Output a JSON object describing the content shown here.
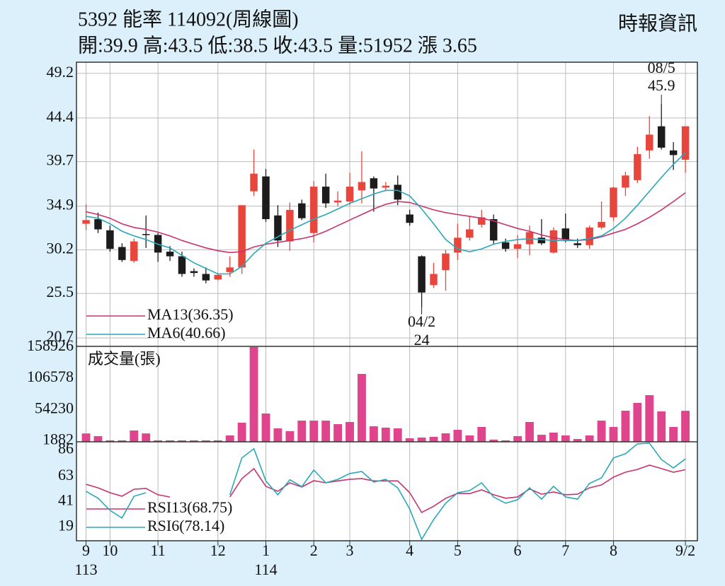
{
  "header": {
    "title": "5392  能率 114092(周線圖)",
    "source": "時報資訊",
    "info": "開:39.9 高:43.5 低:38.5 收:43.5 量:51952 漲 3.65"
  },
  "chart_data": [
    {
      "type": "candlestick",
      "xlim": [
        -0.8,
        51
      ],
      "xticks": [
        {
          "value": 0,
          "label": "9",
          "sublabel": "113"
        },
        {
          "value": 2,
          "label": "10"
        },
        {
          "value": 6,
          "label": "11"
        },
        {
          "value": 11,
          "label": "12"
        },
        {
          "value": 15,
          "label": "1",
          "sublabel": "114"
        },
        {
          "value": 19,
          "label": "2"
        },
        {
          "value": 22,
          "label": "3"
        },
        {
          "value": 27,
          "label": "4"
        },
        {
          "value": 31,
          "label": "5"
        },
        {
          "value": 36,
          "label": "6"
        },
        {
          "value": 40,
          "label": "7"
        },
        {
          "value": 44,
          "label": "8"
        },
        {
          "value": 50,
          "label": "9/2"
        }
      ],
      "open": [
        33.0,
        33.5,
        32.3,
        30.5,
        29.0,
        31.9,
        31.8,
        30.0,
        29.5,
        27.9,
        27.6,
        27.0,
        27.8,
        28.3,
        36.5,
        38.1,
        33.9,
        31.1,
        35.2,
        32.0,
        37.0,
        35.3,
        35.4,
        36.6,
        37.9,
        36.9,
        37.2,
        34.0,
        29.5,
        26.4,
        28.0,
        29.9,
        31.5,
        32.9,
        33.5,
        31.0,
        30.3,
        30.8,
        31.5,
        29.9,
        32.5,
        30.9,
        30.7,
        32.6,
        33.7,
        36.9,
        37.7,
        40.9,
        43.5,
        40.9,
        39.9
      ],
      "high": [
        35.1,
        34.2,
        32.8,
        30.9,
        31.4,
        33.9,
        32.0,
        30.6,
        30.0,
        28.2,
        28.3,
        27.7,
        29.5,
        35.0,
        41.0,
        38.9,
        35.0,
        35.3,
        35.6,
        37.6,
        38.4,
        36.5,
        38.5,
        40.8,
        38.1,
        37.5,
        38.2,
        34.5,
        29.6,
        28.8,
        30.2,
        33.0,
        33.8,
        34.5,
        34.0,
        31.4,
        31.8,
        32.8,
        33.5,
        32.6,
        34.1,
        31.4,
        32.8,
        35.4,
        37.0,
        38.6,
        41.3,
        44.6,
        45.9,
        41.8,
        43.5
      ],
      "low": [
        32.3,
        32.0,
        30.0,
        28.9,
        28.8,
        30.4,
        28.9,
        29.0,
        27.3,
        27.3,
        26.6,
        26.9,
        27.3,
        27.6,
        36.0,
        33.2,
        30.5,
        30.1,
        33.4,
        31.0,
        34.7,
        34.9,
        35.0,
        35.2,
        34.3,
        36.5,
        35.0,
        32.8,
        24.0,
        26.1,
        25.8,
        29.1,
        31.2,
        32.6,
        30.8,
        30.0,
        29.3,
        29.6,
        30.7,
        29.8,
        31.0,
        30.4,
        30.3,
        32.4,
        33.3,
        36.0,
        37.4,
        40.0,
        41.0,
        38.8,
        38.5
      ],
      "close": [
        33.4,
        32.4,
        30.3,
        29.1,
        31.1,
        31.8,
        29.9,
        29.5,
        27.6,
        27.7,
        26.9,
        27.5,
        28.3,
        35.0,
        38.4,
        33.5,
        31.2,
        34.5,
        33.6,
        37.0,
        35.2,
        35.5,
        37.0,
        37.5,
        36.8,
        37.1,
        35.6,
        33.1,
        25.6,
        27.6,
        29.8,
        31.5,
        32.4,
        33.7,
        31.2,
        30.3,
        30.8,
        32.1,
        30.9,
        32.3,
        31.3,
        30.7,
        32.6,
        33.2,
        36.9,
        38.2,
        40.5,
        42.6,
        41.2,
        40.4,
        43.5
      ],
      "up_color": "#e8463c",
      "down_color": "#1c1c1c",
      "ylim": [
        19.8,
        50.4
      ],
      "yticks": [
        20.7,
        25.5,
        30.2,
        34.9,
        39.7,
        44.4,
        49.2
      ],
      "grid": true,
      "series": [
        {
          "name": "MA13(36.35)",
          "color": "#c8336e",
          "values": [
            34.3,
            34.0,
            33.6,
            33.0,
            32.6,
            32.4,
            32.1,
            31.7,
            31.2,
            30.8,
            30.4,
            30.1,
            29.9,
            30.0,
            30.5,
            30.8,
            31.0,
            31.2,
            31.4,
            31.7,
            32.2,
            32.8,
            33.4,
            34.0,
            34.6,
            35.1,
            35.4,
            35.3,
            34.9,
            34.5,
            34.2,
            34.0,
            33.8,
            33.6,
            33.3,
            32.9,
            32.5,
            32.2,
            31.8,
            31.5,
            31.3,
            31.2,
            31.3,
            31.6,
            32.0,
            32.4,
            33.0,
            33.7,
            34.5,
            35.4,
            36.35
          ]
        },
        {
          "name": "MA6(40.66)",
          "color": "#2aa8b8",
          "values": [
            33.8,
            33.6,
            33.0,
            32.2,
            31.7,
            31.3,
            30.8,
            30.4,
            29.6,
            28.8,
            28.2,
            27.6,
            27.6,
            28.4,
            29.8,
            30.9,
            31.6,
            32.3,
            32.9,
            33.5,
            34.0,
            34.6,
            35.2,
            35.7,
            36.2,
            36.6,
            36.6,
            36.0,
            34.6,
            33.0,
            31.3,
            30.3,
            30.0,
            30.3,
            30.8,
            31.1,
            31.3,
            31.4,
            31.3,
            31.2,
            31.2,
            31.2,
            31.4,
            31.7,
            32.5,
            33.6,
            35.0,
            36.5,
            38.0,
            39.4,
            40.66
          ]
        }
      ],
      "annotations": [
        {
          "date": "08/5",
          "value": 45.9,
          "kind": "high"
        },
        {
          "date": "04/2",
          "value": 24,
          "kind": "low"
        }
      ]
    },
    {
      "type": "bar",
      "title": "成交量(張)",
      "color": "#e0448c",
      "values": [
        14000,
        9500,
        2400,
        2400,
        19000,
        14000,
        2400,
        2400,
        2400,
        2400,
        2400,
        2400,
        10700,
        32000,
        158926,
        47400,
        22500,
        17800,
        35500,
        35500,
        35500,
        29600,
        33200,
        113800,
        26000,
        23700,
        22500,
        5900,
        7100,
        8300,
        14200,
        20100,
        10700,
        24900,
        3600,
        2400,
        9500,
        33200,
        11800,
        15400,
        10700,
        4700,
        10700,
        35500,
        24900,
        52100,
        65200,
        78200,
        51000,
        24900,
        51952
      ],
      "ylim": [
        0,
        160000
      ],
      "yticks": [
        1882,
        54230,
        106578,
        158926
      ]
    },
    {
      "type": "line",
      "ylim": [
        7,
        93
      ],
      "yticks": [
        19,
        41,
        63,
        86
      ],
      "series": [
        {
          "name": "RSI13(68.75)",
          "color": "#c8336e",
          "values": [
            56.1,
            53,
            48.8,
            45.7,
            51.8,
            52.5,
            47,
            45,
            null,
            null,
            null,
            null,
            45,
            61,
            69.7,
            54.3,
            50,
            57.4,
            53.7,
            59.2,
            57.4,
            59,
            60.4,
            61,
            59,
            59,
            59,
            48.8,
            31.6,
            37,
            43.9,
            48.2,
            48,
            51.2,
            47,
            44,
            45,
            52,
            47.5,
            49.4,
            47,
            47.5,
            53,
            55.5,
            62.3,
            66.6,
            69,
            72.7,
            69.7,
            66.6,
            68.75
          ]
        },
        {
          "name": "RSI6(78.14)",
          "color": "#2aa8b8",
          "values": [
            50,
            44,
            33.4,
            26.7,
            45.7,
            48.8,
            null,
            null,
            null,
            null,
            null,
            null,
            47,
            79,
            87,
            59,
            47,
            60,
            54,
            68.4,
            57.4,
            60.4,
            65.4,
            67.2,
            58,
            60.4,
            53,
            34.6,
            8.2,
            25.4,
            39.6,
            48.8,
            50.6,
            57.4,
            45,
            39.6,
            42.6,
            53,
            43.2,
            54.3,
            45,
            43.2,
            56.8,
            61.7,
            79,
            82.6,
            91.2,
            91.8,
            77.6,
            70.3,
            78.14
          ]
        }
      ]
    }
  ]
}
